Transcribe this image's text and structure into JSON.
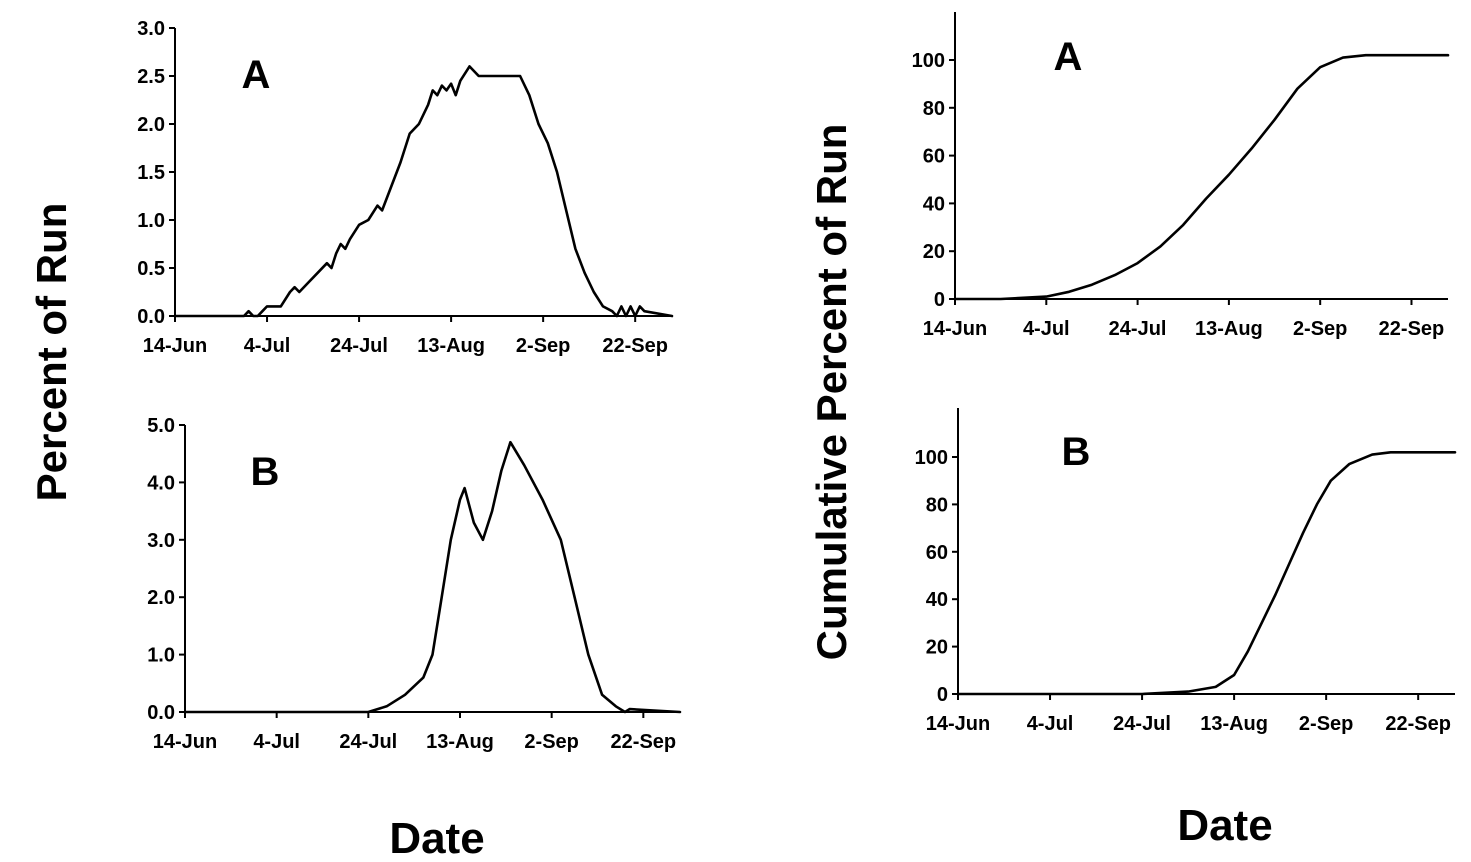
{
  "figure": {
    "left_ylabel": "Percent of Run",
    "right_ylabel": "Cumulative Percent of Run",
    "left_xlabel": "Date",
    "right_xlabel": "Date"
  },
  "chart_data": [
    {
      "id": "daily-a",
      "type": "line",
      "panel_label": "A",
      "title": "",
      "xlabel": "",
      "ylabel": "",
      "x_ticks": [
        "14-Jun",
        "4-Jul",
        "24-Jul",
        "13-Aug",
        "2-Sep",
        "22-Sep"
      ],
      "y_ticks": [
        "0.0",
        "0.5",
        "1.0",
        "1.5",
        "2.0",
        "2.5",
        "3.0"
      ],
      "ylim": [
        0,
        3.0
      ],
      "xlim": [
        "2025-06-14",
        "2025-09-30"
      ],
      "series": [
        {
          "points": [
            [
              "2025-06-14",
              0.0
            ],
            [
              "2025-06-29",
              0.0
            ],
            [
              "2025-06-30",
              0.05
            ],
            [
              "2025-07-01",
              0.0
            ],
            [
              "2025-07-02",
              0.0
            ],
            [
              "2025-07-03",
              0.05
            ],
            [
              "2025-07-04",
              0.1
            ],
            [
              "2025-07-07",
              0.1
            ],
            [
              "2025-07-09",
              0.25
            ],
            [
              "2025-07-10",
              0.3
            ],
            [
              "2025-07-11",
              0.25
            ],
            [
              "2025-07-13",
              0.35
            ],
            [
              "2025-07-15",
              0.45
            ],
            [
              "2025-07-17",
              0.55
            ],
            [
              "2025-07-18",
              0.5
            ],
            [
              "2025-07-19",
              0.65
            ],
            [
              "2025-07-20",
              0.75
            ],
            [
              "2025-07-21",
              0.7
            ],
            [
              "2025-07-22",
              0.8
            ],
            [
              "2025-07-24",
              0.95
            ],
            [
              "2025-07-26",
              1.0
            ],
            [
              "2025-07-28",
              1.15
            ],
            [
              "2025-07-29",
              1.1
            ],
            [
              "2025-07-31",
              1.35
            ],
            [
              "2025-08-02",
              1.6
            ],
            [
              "2025-08-04",
              1.9
            ],
            [
              "2025-08-06",
              2.0
            ],
            [
              "2025-08-08",
              2.2
            ],
            [
              "2025-08-09",
              2.35
            ],
            [
              "2025-08-10",
              2.3
            ],
            [
              "2025-08-11",
              2.4
            ],
            [
              "2025-08-12",
              2.35
            ],
            [
              "2025-08-13",
              2.42
            ],
            [
              "2025-08-14",
              2.3
            ],
            [
              "2025-08-15",
              2.45
            ],
            [
              "2025-08-17",
              2.6
            ],
            [
              "2025-08-19",
              2.5
            ],
            [
              "2025-08-28",
              2.5
            ],
            [
              "2025-08-30",
              2.3
            ],
            [
              "2025-09-01",
              2.0
            ],
            [
              "2025-09-03",
              1.8
            ],
            [
              "2025-09-05",
              1.5
            ],
            [
              "2025-09-07",
              1.1
            ],
            [
              "2025-09-09",
              0.7
            ],
            [
              "2025-09-11",
              0.45
            ],
            [
              "2025-09-13",
              0.25
            ],
            [
              "2025-09-15",
              0.1
            ],
            [
              "2025-09-17",
              0.05
            ],
            [
              "2025-09-18",
              0.0
            ],
            [
              "2025-09-19",
              0.1
            ],
            [
              "2025-09-20",
              0.0
            ],
            [
              "2025-09-21",
              0.1
            ],
            [
              "2025-09-22",
              0.0
            ],
            [
              "2025-09-23",
              0.1
            ],
            [
              "2025-09-24",
              0.05
            ],
            [
              "2025-09-30",
              0.0
            ]
          ]
        }
      ]
    },
    {
      "id": "daily-b",
      "type": "line",
      "panel_label": "B",
      "title": "",
      "xlabel": "",
      "ylabel": "",
      "x_ticks": [
        "14-Jun",
        "4-Jul",
        "24-Jul",
        "13-Aug",
        "2-Sep",
        "22-Sep"
      ],
      "y_ticks": [
        "0.0",
        "1.0",
        "2.0",
        "3.0",
        "4.0",
        "5.0"
      ],
      "ylim": [
        0,
        5.0
      ],
      "xlim": [
        "2025-06-14",
        "2025-09-30"
      ],
      "series": [
        {
          "points": [
            [
              "2025-06-14",
              0.0
            ],
            [
              "2025-07-24",
              0.0
            ],
            [
              "2025-07-28",
              0.1
            ],
            [
              "2025-08-01",
              0.3
            ],
            [
              "2025-08-05",
              0.6
            ],
            [
              "2025-08-07",
              1.0
            ],
            [
              "2025-08-09",
              2.0
            ],
            [
              "2025-08-11",
              3.0
            ],
            [
              "2025-08-13",
              3.7
            ],
            [
              "2025-08-14",
              3.9
            ],
            [
              "2025-08-16",
              3.3
            ],
            [
              "2025-08-18",
              3.0
            ],
            [
              "2025-08-20",
              3.5
            ],
            [
              "2025-08-22",
              4.2
            ],
            [
              "2025-08-24",
              4.7
            ],
            [
              "2025-08-27",
              4.3
            ],
            [
              "2025-08-31",
              3.7
            ],
            [
              "2025-09-04",
              3.0
            ],
            [
              "2025-09-07",
              2.0
            ],
            [
              "2025-09-10",
              1.0
            ],
            [
              "2025-09-13",
              0.3
            ],
            [
              "2025-09-16",
              0.1
            ],
            [
              "2025-09-18",
              0.0
            ],
            [
              "2025-09-19",
              0.05
            ],
            [
              "2025-09-30",
              0.0
            ]
          ]
        }
      ]
    },
    {
      "id": "cumulative-a",
      "type": "line",
      "panel_label": "A",
      "title": "",
      "xlabel": "",
      "ylabel": "",
      "x_ticks": [
        "14-Jun",
        "4-Jul",
        "24-Jul",
        "13-Aug",
        "2-Sep",
        "22-Sep"
      ],
      "y_ticks": [
        "0",
        "20",
        "40",
        "60",
        "80",
        "100"
      ],
      "ylim": [
        0,
        120
      ],
      "xlim": [
        "2025-06-14",
        "2025-09-30"
      ],
      "series": [
        {
          "points": [
            [
              "2025-06-14",
              0
            ],
            [
              "2025-06-24",
              0
            ],
            [
              "2025-07-04",
              1
            ],
            [
              "2025-07-09",
              3
            ],
            [
              "2025-07-14",
              6
            ],
            [
              "2025-07-19",
              10
            ],
            [
              "2025-07-24",
              15
            ],
            [
              "2025-07-29",
              22
            ],
            [
              "2025-08-03",
              31
            ],
            [
              "2025-08-08",
              42
            ],
            [
              "2025-08-13",
              52
            ],
            [
              "2025-08-18",
              63
            ],
            [
              "2025-08-23",
              75
            ],
            [
              "2025-08-28",
              88
            ],
            [
              "2025-09-02",
              97
            ],
            [
              "2025-09-07",
              101
            ],
            [
              "2025-09-12",
              102
            ],
            [
              "2025-09-30",
              102
            ]
          ]
        }
      ]
    },
    {
      "id": "cumulative-b",
      "type": "line",
      "panel_label": "B",
      "title": "",
      "xlabel": "",
      "ylabel": "",
      "x_ticks": [
        "14-Jun",
        "4-Jul",
        "24-Jul",
        "13-Aug",
        "2-Sep",
        "22-Sep"
      ],
      "y_ticks": [
        "0",
        "20",
        "40",
        "60",
        "80",
        "100"
      ],
      "ylim": [
        0,
        120
      ],
      "xlim": [
        "2025-06-14",
        "2025-09-30"
      ],
      "series": [
        {
          "points": [
            [
              "2025-06-14",
              0
            ],
            [
              "2025-07-24",
              0
            ],
            [
              "2025-08-03",
              1
            ],
            [
              "2025-08-09",
              3
            ],
            [
              "2025-08-13",
              8
            ],
            [
              "2025-08-16",
              18
            ],
            [
              "2025-08-19",
              30
            ],
            [
              "2025-08-22",
              42
            ],
            [
              "2025-08-25",
              55
            ],
            [
              "2025-08-28",
              68
            ],
            [
              "2025-08-31",
              80
            ],
            [
              "2025-09-03",
              90
            ],
            [
              "2025-09-07",
              97
            ],
            [
              "2025-09-12",
              101
            ],
            [
              "2025-09-16",
              102
            ],
            [
              "2025-09-30",
              102
            ]
          ]
        }
      ]
    }
  ]
}
